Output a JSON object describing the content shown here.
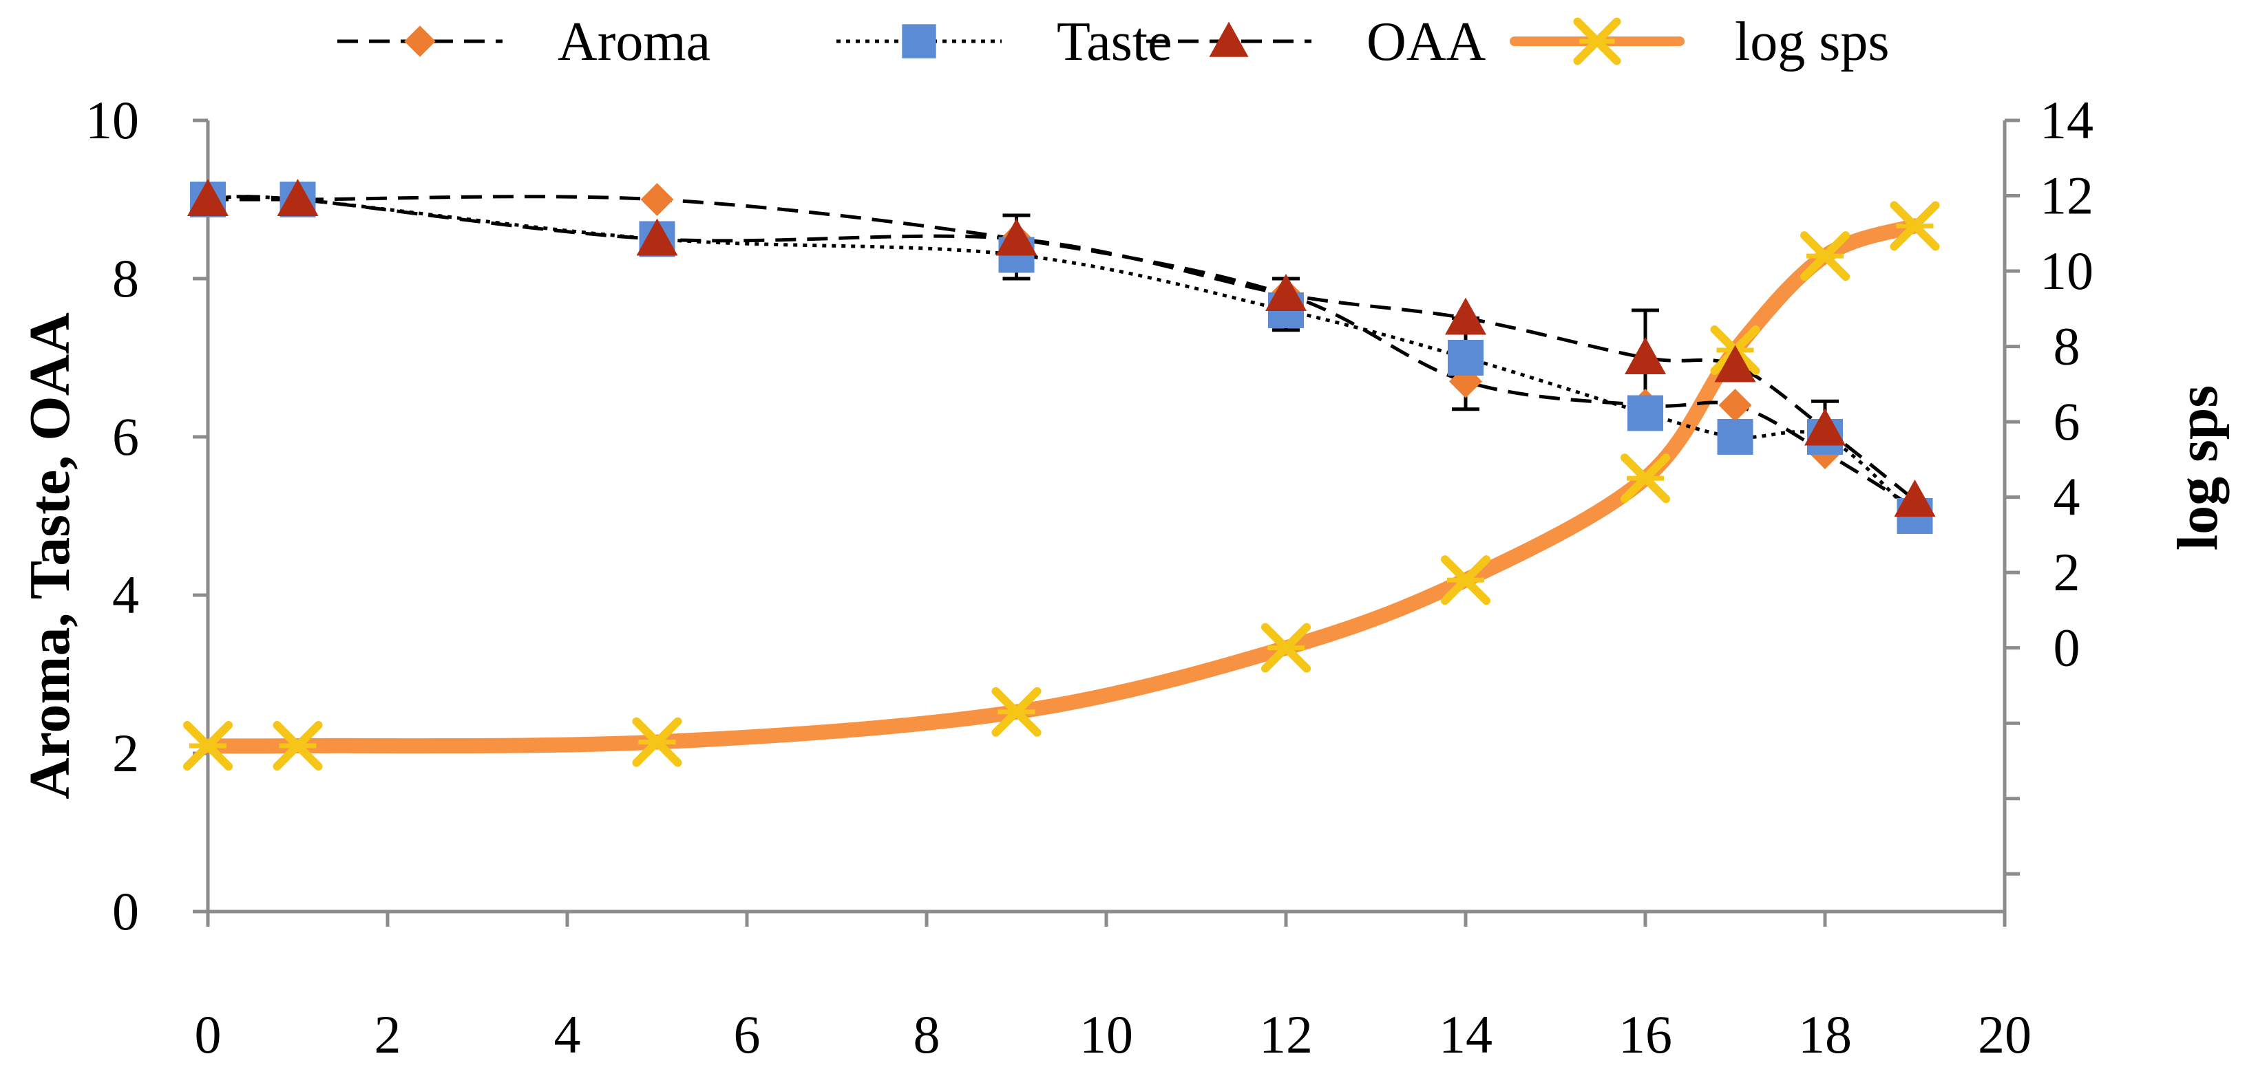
{
  "chart_data": {
    "type": "line",
    "title": "",
    "xlabel": "",
    "ylabel": "Aroma,  Taste,  OAA",
    "y2label": "log sps",
    "xlim": [
      0,
      20
    ],
    "ylim": [
      0,
      10
    ],
    "y2lim": [
      -7,
      14
    ],
    "x_ticks": [
      "0",
      "2",
      "4",
      "6",
      "8",
      "10",
      "12",
      "14",
      "16",
      "18",
      "20"
    ],
    "y_ticks": [
      "0",
      "2",
      "4",
      "6",
      "8",
      "10"
    ],
    "y2_ticks": [
      "0",
      "2",
      "4",
      "6",
      "8",
      "10",
      "12",
      "14"
    ],
    "grid": false,
    "legend_position": "top",
    "series": [
      {
        "name": "Aroma",
        "axis": "left",
        "line": "dashed",
        "marker": "diamond",
        "color": "#ED7D31",
        "line_color": "#000000",
        "x": [
          0,
          1,
          5,
          9,
          12,
          14,
          16,
          17,
          18,
          19
        ],
        "values": [
          9.0,
          9.0,
          9.0,
          8.5,
          7.8,
          6.7,
          6.4,
          6.4,
          5.8,
          5.1
        ]
      },
      {
        "name": "Taste",
        "axis": "left",
        "line": "dotted",
        "marker": "square",
        "color": "#5B8BD5",
        "line_color": "#000000",
        "x": [
          0,
          1,
          5,
          9,
          12,
          14,
          16,
          17,
          18,
          19
        ],
        "values": [
          9.0,
          9.0,
          8.5,
          8.3,
          7.6,
          7.0,
          6.3,
          6.0,
          6.0,
          5.0
        ]
      },
      {
        "name": "OAA",
        "axis": "left",
        "line": "dashed",
        "marker": "triangle",
        "color": "#B22C14",
        "line_color": "#000000",
        "x": [
          0,
          1,
          5,
          9,
          12,
          14,
          16,
          17,
          18,
          19
        ],
        "values": [
          9.0,
          9.0,
          8.5,
          8.5,
          7.8,
          7.5,
          7.0,
          6.9,
          6.1,
          5.2
        ]
      },
      {
        "name": "log sps",
        "axis": "right",
        "line": "solid",
        "marker": "x",
        "color": "#F5C518",
        "line_color": "#F79243",
        "x": [
          0,
          1,
          5,
          9,
          12,
          14,
          16,
          17,
          18,
          19
        ],
        "values": [
          -2.6,
          -2.6,
          -2.5,
          -1.7,
          0.0,
          1.8,
          4.5,
          7.9,
          10.4,
          11.2
        ]
      }
    ],
    "error_bars": {
      "x": [
        9,
        12,
        14,
        16,
        18
      ],
      "low": [
        8.0,
        7.35,
        6.35,
        6.2,
        5.8
      ],
      "high": [
        8.8,
        8.0,
        7.5,
        7.6,
        6.45
      ]
    }
  }
}
